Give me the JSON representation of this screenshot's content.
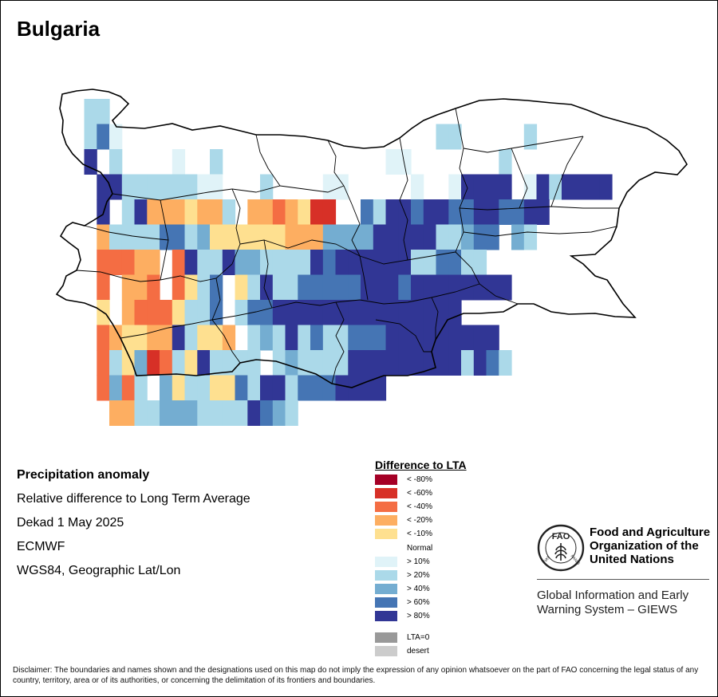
{
  "title": "Bulgaria",
  "info": {
    "heading": "Precipitation anomaly",
    "subtitle": "Relative difference to Long Term Average",
    "period": "Dekad 1 May 2025",
    "source": "ECMWF",
    "projection": "WGS84, Geographic Lat/Lon"
  },
  "legend": {
    "title": "Difference to LTA",
    "items": [
      {
        "label": "< -80%",
        "color": "#a50026"
      },
      {
        "label": "< -60%",
        "color": "#d73027"
      },
      {
        "label": "< -40%",
        "color": "#f46d43"
      },
      {
        "label": "< -20%",
        "color": "#fdae61"
      },
      {
        "label": "< -10%",
        "color": "#fee090"
      },
      {
        "label": "Normal",
        "color": "#ffffff"
      },
      {
        "label": "> 10%",
        "color": "#e0f3f8"
      },
      {
        "label": "> 20%",
        "color": "#abd9e9"
      },
      {
        "label": "> 40%",
        "color": "#74add1"
      },
      {
        "label": "> 60%",
        "color": "#4575b4"
      },
      {
        "label": "> 80%",
        "color": "#313695"
      },
      {
        "label": "LTA=0",
        "color": "#999999"
      },
      {
        "label": "desert",
        "color": "#cccccc"
      }
    ]
  },
  "grid_codes": [
    "..SS.......................................",
    "..SBN.........................SS.....S.....",
    "..V.S....T..S.............TT.......S......",
    "...VVQSSSSSTT...S....NN.....L..TVVVV.TVSVVVV..",
    "...V.SVAAAYAAS.AARAYDD..BSVVBVVBBVVBBVV....",
    "...ASSSSBBSPYYYYYYAAAGGGGVVVVVSSGBB.GS.....",
    "...RRRAA.RVSSVGGSSSSVBVVVVVVSSBBSS.........",
    "...R.AAR.RYSB.YSVSSBBBBBVVVBVVVVVVVV.......",
    "...Y.ARRRYSSB.SBBVVVVVVVVVVVVVVV...........",
    "...RAYYAAVSYYA.SGSVSBSSBBBVVVVVVVVV........",
    "...RSYGDRSYVSSSS.SGSSSSVVVVVVVVVSVBS.......",
    "...RGRS.GYSSYYBSVVSBBBVVVV.................",
    "....AASSGGGSSSSVBGS......................."
  ],
  "disclaimer": "Disclaimer: The boundaries and names shown and the designations used on this map do not imply the expression of any opinion whatsoever on the part of FAO concerning the legal status of any country, territory, area or of its authorities, or concerning the delimitation of its frontiers and boundaries.",
  "fao": {
    "name_line1": "Food and Agriculture",
    "name_line2": "Organization of the",
    "name_line3": "United Nations",
    "giews_line1": "Global Information and Early",
    "giews_line2": "Warning System – GIEWS",
    "logo_text_top": "FAO",
    "logo_text_left": "FIAT",
    "logo_text_right": "PANIS"
  }
}
